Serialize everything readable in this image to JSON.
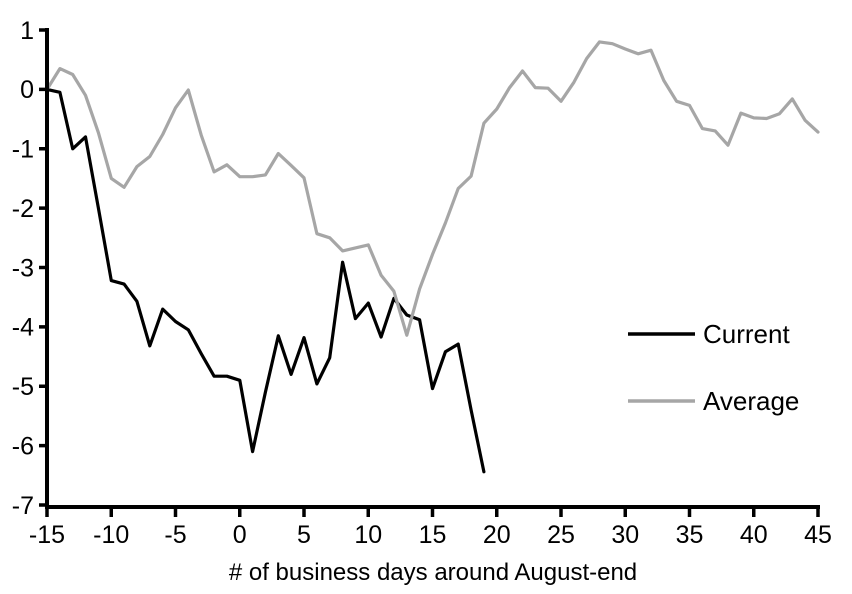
{
  "chart_data": {
    "type": "line",
    "title": "",
    "xlabel": "# of business days around August-end",
    "ylabel": "",
    "xlim": [
      -15,
      45
    ],
    "ylim": [
      -7,
      1
    ],
    "x_ticks": [
      -15,
      -10,
      -5,
      0,
      5,
      10,
      15,
      20,
      25,
      30,
      35,
      40,
      45
    ],
    "y_ticks": [
      1,
      0,
      -1,
      -2,
      -3,
      -4,
      -5,
      -6,
      -7
    ],
    "grid": false,
    "legend_position": "right-middle",
    "axis_color": "#000000",
    "series": [
      {
        "name": "Current",
        "color": "#000000",
        "x": [
          -15,
          -14,
          -13,
          -12,
          -11,
          -10,
          -9,
          -8,
          -7,
          -6,
          -5,
          -4,
          -3,
          -2,
          -1,
          0,
          1,
          2,
          3,
          4,
          5,
          6,
          7,
          8,
          9,
          10,
          11,
          12,
          13,
          14,
          15,
          16,
          17,
          18,
          19
        ],
        "values": [
          0,
          -0.05,
          -1.0,
          -0.8,
          -2.0,
          -3.22,
          -3.28,
          -3.57,
          -4.32,
          -3.7,
          -3.91,
          -4.05,
          -4.45,
          -4.83,
          -4.83,
          -4.9,
          -6.1,
          -5.1,
          -4.15,
          -4.8,
          -4.18,
          -4.96,
          -4.52,
          -2.91,
          -3.86,
          -3.6,
          -4.17,
          -3.52,
          -3.8,
          -3.88,
          -5.04,
          -4.42,
          -4.29,
          -5.4,
          -6.44
        ]
      },
      {
        "name": "Average",
        "color": "#a6a6a6",
        "x": [
          -15,
          -14,
          -13,
          -12,
          -11,
          -10,
          -9,
          -8,
          -7,
          -6,
          -5,
          -4,
          -3,
          -2,
          -1,
          0,
          1,
          2,
          3,
          4,
          5,
          6,
          7,
          8,
          9,
          10,
          11,
          12,
          13,
          14,
          15,
          16,
          17,
          18,
          19,
          20,
          21,
          22,
          23,
          24,
          25,
          26,
          27,
          28,
          29,
          30,
          31,
          32,
          33,
          34,
          35,
          36,
          37,
          38,
          39,
          40,
          41,
          42,
          43,
          44,
          45
        ],
        "values": [
          0,
          0.35,
          0.25,
          -0.1,
          -0.73,
          -1.5,
          -1.65,
          -1.3,
          -1.13,
          -0.76,
          -0.31,
          -0.01,
          -0.77,
          -1.39,
          -1.27,
          -1.47,
          -1.47,
          -1.44,
          -1.08,
          -1.28,
          -1.49,
          -2.43,
          -2.5,
          -2.72,
          -2.67,
          -2.62,
          -3.13,
          -3.4,
          -4.14,
          -3.36,
          -2.78,
          -2.25,
          -1.67,
          -1.46,
          -0.57,
          -0.33,
          0.03,
          0.31,
          0.03,
          0.02,
          -0.2,
          0.12,
          0.52,
          0.8,
          0.77,
          0.68,
          0.6,
          0.66,
          0.15,
          -0.2,
          -0.27,
          -0.66,
          -0.7,
          -0.94,
          -0.4,
          -0.48,
          -0.49,
          -0.41,
          -0.16,
          -0.52,
          -0.72
        ]
      }
    ]
  }
}
